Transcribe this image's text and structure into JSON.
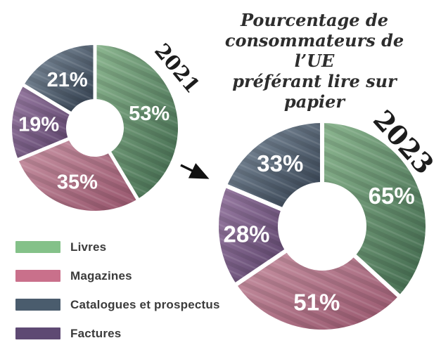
{
  "title": {
    "lines": [
      "Pourcentage de",
      "consommateurs de l’UE",
      "préférant lire sur papier"
    ]
  },
  "categories": {
    "livres": {
      "label": "Livres",
      "legend_color": "#84c189",
      "gradient": [
        "#8cb690",
        "#41684d"
      ]
    },
    "magazines": {
      "label": "Magazines",
      "legend_color": "#c9708b",
      "gradient": [
        "#ca96a6",
        "#96546b"
      ]
    },
    "catalogues": {
      "label": "Catalogues et prospectus",
      "legend_color": "#4a5c6d",
      "gradient": [
        "#8897a6",
        "#2f3b4a"
      ]
    },
    "factures": {
      "label": "Factures",
      "legend_color": "#5e4973",
      "gradient": [
        "#9a7da4",
        "#5a4168"
      ]
    }
  },
  "legend": {
    "order": [
      "livres",
      "magazines",
      "catalogues",
      "factures"
    ]
  },
  "chart_data": [
    {
      "type": "pie",
      "subtype": "donut",
      "year_label": "2021",
      "unit": "%",
      "start": "top",
      "direction": "clockwise",
      "segments": [
        {
          "key": "livres",
          "label": "Livres",
          "value": 53
        },
        {
          "key": "magazines",
          "label": "Magazines",
          "value": 35
        },
        {
          "key": "factures",
          "label": "Factures",
          "value": 19
        },
        {
          "key": "catalogues",
          "label": "Catalogues et prospectus",
          "value": 21
        }
      ]
    },
    {
      "type": "pie",
      "subtype": "donut",
      "year_label": "2023",
      "unit": "%",
      "start": "top",
      "direction": "clockwise",
      "segments": [
        {
          "key": "livres",
          "label": "Livres",
          "value": 65
        },
        {
          "key": "magazines",
          "label": "Magazines",
          "value": 51
        },
        {
          "key": "factures",
          "label": "Factures",
          "value": 28
        },
        {
          "key": "catalogues",
          "label": "Catalogues et prospectus",
          "value": 33
        }
      ]
    }
  ],
  "text_color_on_segments": "#ffffff"
}
